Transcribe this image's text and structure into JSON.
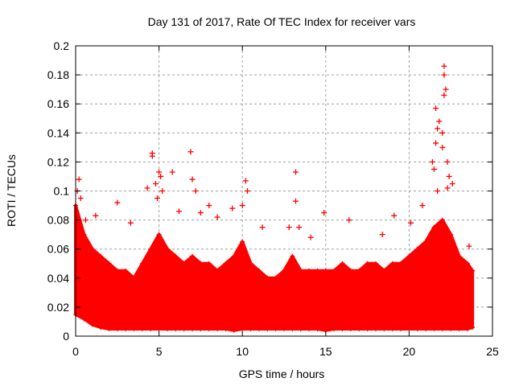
{
  "chart_data": {
    "type": "scatter",
    "title": "Day 131 of 2017, Rate Of TEC Index for receiver vars",
    "xlabel": "GPS time / hours",
    "ylabel": "ROTI / TECUs",
    "xlim": [
      0,
      25
    ],
    "ylim": [
      0,
      0.2
    ],
    "xticks": [
      0,
      5,
      10,
      15,
      20,
      25
    ],
    "xtick_labels": [
      "0",
      "5",
      "10",
      "15",
      "20",
      "25"
    ],
    "yticks": [
      0,
      0.02,
      0.04,
      0.06,
      0.08,
      0.1,
      0.12,
      0.14,
      0.16,
      0.18,
      0.2
    ],
    "ytick_labels": [
      "0",
      "0.02",
      "0.04",
      "0.06",
      "0.08",
      "0.1",
      "0.12",
      "0.14",
      "0.16",
      "0.18",
      "0.2"
    ],
    "grid": true,
    "marker": "+",
    "color": "#ff0000",
    "dense_band": {
      "x": [
        0,
        0.5,
        1,
        1.5,
        2,
        2.5,
        3,
        3.5,
        4,
        4.5,
        5,
        5.5,
        6,
        6.5,
        7,
        7.5,
        8,
        8.5,
        9,
        9.5,
        10,
        10.5,
        11,
        11.5,
        12,
        12.5,
        13,
        13.5,
        14,
        14.5,
        15,
        15.5,
        16,
        16.5,
        17,
        17.5,
        18,
        18.5,
        19,
        19.5,
        20,
        20.5,
        21,
        21.5,
        22,
        22.5,
        23,
        23.5,
        23.8
      ],
      "ymax": [
        0.09,
        0.07,
        0.06,
        0.055,
        0.05,
        0.045,
        0.045,
        0.04,
        0.05,
        0.06,
        0.07,
        0.06,
        0.055,
        0.05,
        0.055,
        0.05,
        0.05,
        0.045,
        0.05,
        0.055,
        0.065,
        0.05,
        0.045,
        0.04,
        0.04,
        0.045,
        0.055,
        0.045,
        0.045,
        0.045,
        0.045,
        0.045,
        0.05,
        0.045,
        0.045,
        0.05,
        0.05,
        0.045,
        0.05,
        0.05,
        0.055,
        0.06,
        0.065,
        0.075,
        0.08,
        0.07,
        0.055,
        0.05,
        0.045
      ],
      "ymin": [
        0.015,
        0.012,
        0.008,
        0.006,
        0.005,
        0.005,
        0.005,
        0.005,
        0.005,
        0.005,
        0.005,
        0.005,
        0.005,
        0.005,
        0.005,
        0.005,
        0.005,
        0.005,
        0.005,
        0.004,
        0.005,
        0.005,
        0.005,
        0.005,
        0.005,
        0.005,
        0.005,
        0.005,
        0.005,
        0.005,
        0.004,
        0.005,
        0.005,
        0.005,
        0.005,
        0.005,
        0.005,
        0.005,
        0.005,
        0.005,
        0.005,
        0.005,
        0.005,
        0.005,
        0.005,
        0.005,
        0.005,
        0.005,
        0.006
      ]
    },
    "points": [
      [
        0.2,
        0.108
      ],
      [
        0.1,
        0.1
      ],
      [
        0.3,
        0.095
      ],
      [
        0.6,
        0.08
      ],
      [
        1.2,
        0.083
      ],
      [
        2.5,
        0.092
      ],
      [
        3.3,
        0.078
      ],
      [
        4.3,
        0.102
      ],
      [
        4.6,
        0.126
      ],
      [
        4.6,
        0.124
      ],
      [
        4.8,
        0.105
      ],
      [
        5.0,
        0.113
      ],
      [
        5.1,
        0.11
      ],
      [
        5.2,
        0.1
      ],
      [
        4.9,
        0.095
      ],
      [
        5.8,
        0.113
      ],
      [
        6.2,
        0.086
      ],
      [
        6.9,
        0.127
      ],
      [
        7.0,
        0.108
      ],
      [
        7.2,
        0.1
      ],
      [
        7.5,
        0.085
      ],
      [
        8.0,
        0.09
      ],
      [
        8.5,
        0.082
      ],
      [
        9.4,
        0.088
      ],
      [
        10.0,
        0.09
      ],
      [
        10.2,
        0.107
      ],
      [
        10.3,
        0.1
      ],
      [
        11.2,
        0.075
      ],
      [
        12.8,
        0.075
      ],
      [
        13.2,
        0.113
      ],
      [
        13.2,
        0.093
      ],
      [
        13.4,
        0.075
      ],
      [
        14.1,
        0.068
      ],
      [
        14.9,
        0.085
      ],
      [
        16.4,
        0.08
      ],
      [
        18.4,
        0.07
      ],
      [
        19.1,
        0.083
      ],
      [
        20.1,
        0.078
      ],
      [
        20.8,
        0.09
      ],
      [
        21.4,
        0.12
      ],
      [
        21.6,
        0.157
      ],
      [
        21.7,
        0.143
      ],
      [
        21.6,
        0.133
      ],
      [
        21.8,
        0.148
      ],
      [
        22.1,
        0.186
      ],
      [
        22.1,
        0.18
      ],
      [
        22.2,
        0.17
      ],
      [
        22.1,
        0.166
      ],
      [
        22.0,
        0.14
      ],
      [
        22.3,
        0.12
      ],
      [
        22.4,
        0.11
      ],
      [
        22.3,
        0.102
      ],
      [
        22.6,
        0.105
      ],
      [
        22.0,
        0.13
      ],
      [
        21.5,
        0.115
      ],
      [
        21.7,
        0.1
      ],
      [
        23.6,
        0.062
      ]
    ]
  }
}
